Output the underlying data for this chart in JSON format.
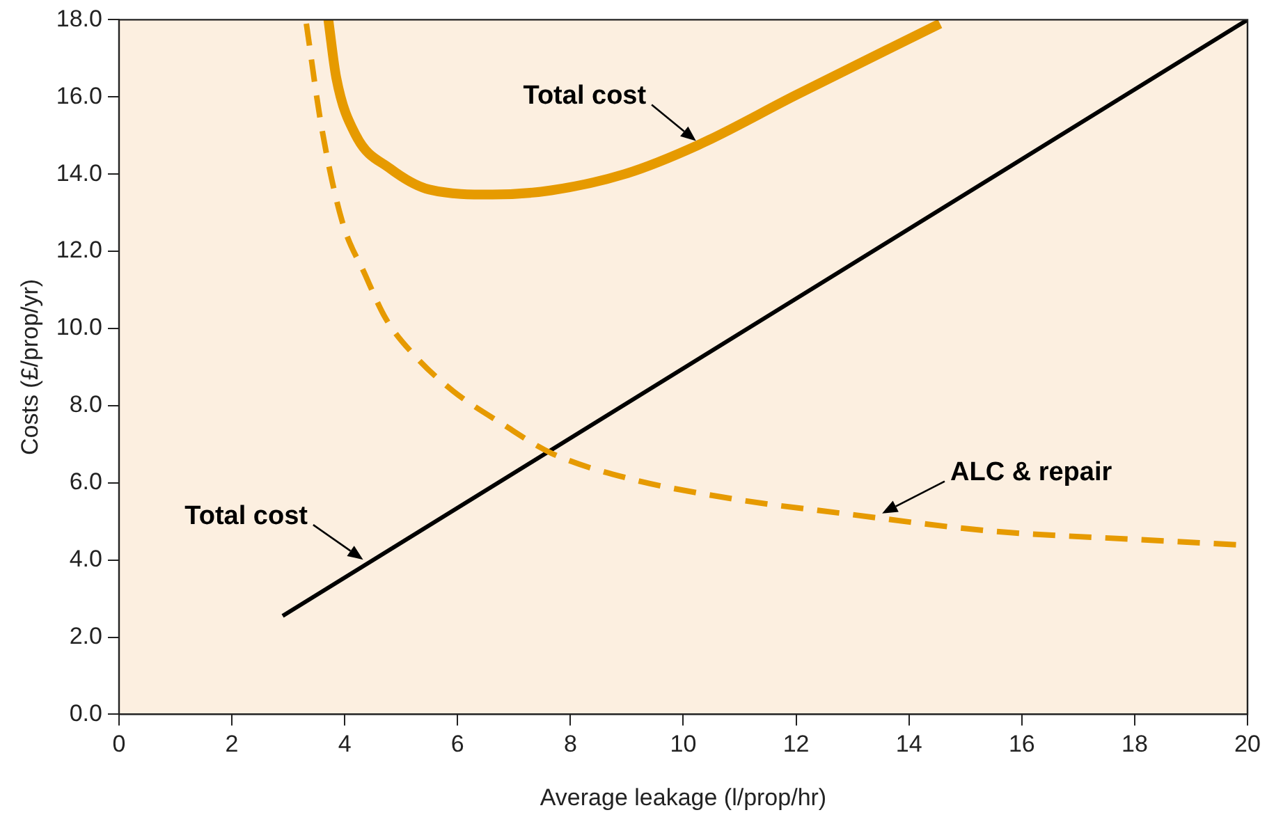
{
  "chart_data": {
    "type": "line",
    "xlabel": "Average leakage (l/prop/hr)",
    "ylabel": "Costs (£/prop/yr)",
    "xlim": [
      0,
      20
    ],
    "xticks": [
      0,
      2,
      4,
      6,
      8,
      10,
      12,
      14,
      16,
      18,
      20
    ],
    "ylim": [
      0,
      18
    ],
    "yticks": [
      {
        "value": 0,
        "label": "0.0"
      },
      {
        "value": 2,
        "label": "2.0"
      },
      {
        "value": 4,
        "label": "4.0"
      },
      {
        "value": 6,
        "label": "6.0"
      },
      {
        "value": 8,
        "label": "8.0"
      },
      {
        "value": 10,
        "label": "10.0"
      },
      {
        "value": 12,
        "label": "12.0"
      },
      {
        "value": 14,
        "label": "14.0"
      },
      {
        "value": 16,
        "label": "16.0"
      },
      {
        "value": 18,
        "label": "18.0"
      }
    ],
    "grid": false,
    "legend": false,
    "marker": "none",
    "series": [
      {
        "color": "#e69a00",
        "line_style": "solid",
        "x": [
          3.71,
          3.85,
          4.2,
          4.8,
          5.5,
          6.62,
          7.66,
          8.96,
          10.26,
          12,
          14.55
        ],
        "values": [
          18,
          16.5,
          15,
          14.15,
          13.6,
          13.47,
          13.58,
          14,
          14.75,
          16.05,
          17.9
        ]
      },
      {
        "color": "#e69a00",
        "line_style": "dashed",
        "x": [
          3.32,
          3.58,
          3.95,
          4.36,
          4.73,
          5.25,
          5.92,
          6.8,
          7.66,
          8.96,
          10.9,
          12.86,
          15.45,
          18.05,
          20
        ],
        "values": [
          17.9,
          15.3,
          12.8,
          11.4,
          10.25,
          9.28,
          8.38,
          7.52,
          6.77,
          6.14,
          5.58,
          5.2,
          4.75,
          4.53,
          4.38
        ]
      },
      {
        "color": "#000000",
        "line_style": "solid",
        "x": [
          2.9,
          20
        ],
        "values": [
          2.55,
          18
        ]
      }
    ],
    "annotations": [
      {
        "text": "Total cost",
        "x": 10.3,
        "y": 14.75
      },
      {
        "text": "Total cost",
        "x": 4.4,
        "y": 3.9
      },
      {
        "text": "ALC & repair",
        "x": 13.45,
        "y": 5.1
      }
    ]
  }
}
